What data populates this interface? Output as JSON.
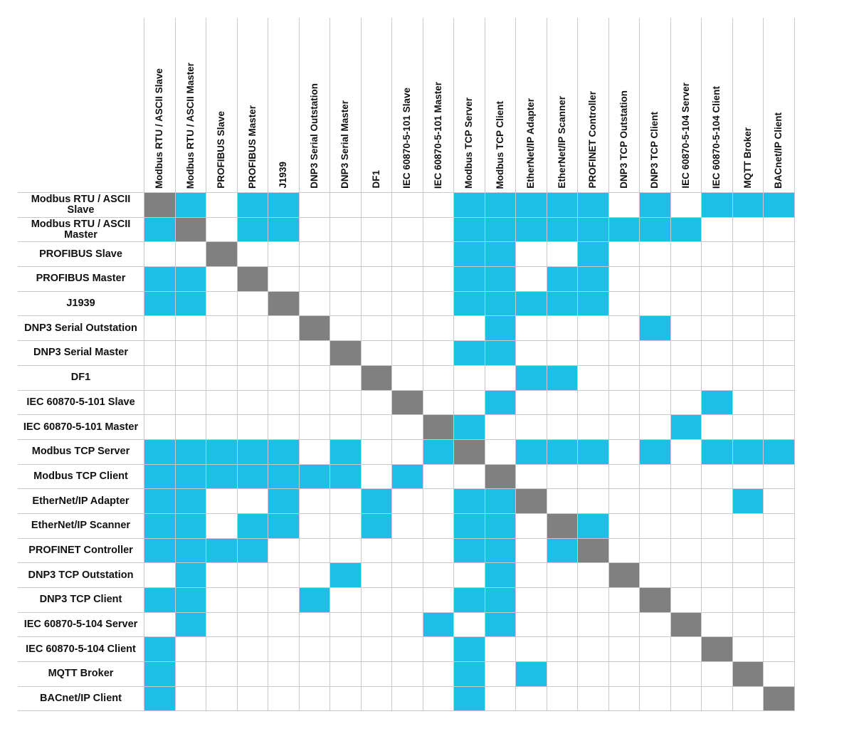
{
  "chart_data": {
    "type": "table",
    "protocols": [
      "Modbus RTU / ASCII Slave",
      "Modbus RTU / ASCII Master",
      "PROFIBUS Slave",
      "PROFIBUS Master",
      "J1939",
      "DNP3 Serial Outstation",
      "DNP3 Serial Master",
      "DF1",
      "IEC 60870-5-101 Slave",
      "IEC 60870-5-101 Master",
      "Modbus TCP Server",
      "Modbus TCP Client",
      "EtherNet/IP Adapter",
      "EtherNet/IP Scanner",
      "PROFINET Controller",
      "DNP3 TCP Outstation",
      "DNP3 TCP Client",
      "IEC 60870-5-104 Server",
      "IEC 60870-5-104 Client",
      "MQTT Broker",
      "BACnet/IP Client"
    ],
    "matrix": [
      [
        2,
        1,
        0,
        1,
        1,
        0,
        0,
        0,
        0,
        0,
        1,
        1,
        1,
        1,
        1,
        0,
        1,
        0,
        1,
        1,
        1
      ],
      [
        1,
        2,
        0,
        1,
        1,
        0,
        0,
        0,
        0,
        0,
        1,
        1,
        1,
        1,
        1,
        1,
        1,
        1,
        0,
        0,
        0
      ],
      [
        0,
        0,
        2,
        0,
        0,
        0,
        0,
        0,
        0,
        0,
        1,
        1,
        0,
        0,
        1,
        0,
        0,
        0,
        0,
        0,
        0
      ],
      [
        1,
        1,
        0,
        2,
        0,
        0,
        0,
        0,
        0,
        0,
        1,
        1,
        0,
        1,
        1,
        0,
        0,
        0,
        0,
        0,
        0
      ],
      [
        1,
        1,
        0,
        0,
        2,
        0,
        0,
        0,
        0,
        0,
        1,
        1,
        1,
        1,
        1,
        0,
        0,
        0,
        0,
        0,
        0
      ],
      [
        0,
        0,
        0,
        0,
        0,
        2,
        0,
        0,
        0,
        0,
        0,
        1,
        0,
        0,
        0,
        0,
        1,
        0,
        0,
        0,
        0
      ],
      [
        0,
        0,
        0,
        0,
        0,
        0,
        2,
        0,
        0,
        0,
        1,
        1,
        0,
        0,
        0,
        0,
        0,
        0,
        0,
        0,
        0
      ],
      [
        0,
        0,
        0,
        0,
        0,
        0,
        0,
        2,
        0,
        0,
        0,
        0,
        1,
        1,
        0,
        0,
        0,
        0,
        0,
        0,
        0
      ],
      [
        0,
        0,
        0,
        0,
        0,
        0,
        0,
        0,
        2,
        0,
        0,
        1,
        0,
        0,
        0,
        0,
        0,
        0,
        1,
        0,
        0
      ],
      [
        0,
        0,
        0,
        0,
        0,
        0,
        0,
        0,
        0,
        2,
        1,
        0,
        0,
        0,
        0,
        0,
        0,
        1,
        0,
        0,
        0
      ],
      [
        1,
        1,
        1,
        1,
        1,
        0,
        1,
        0,
        0,
        1,
        2,
        0,
        1,
        1,
        1,
        0,
        1,
        0,
        1,
        1,
        1
      ],
      [
        1,
        1,
        1,
        1,
        1,
        1,
        1,
        0,
        1,
        0,
        0,
        2,
        0,
        0,
        0,
        0,
        0,
        0,
        0,
        0,
        0
      ],
      [
        1,
        1,
        0,
        0,
        1,
        0,
        0,
        1,
        0,
        0,
        1,
        1,
        2,
        0,
        0,
        0,
        0,
        0,
        0,
        1,
        0
      ],
      [
        1,
        1,
        0,
        1,
        1,
        0,
        0,
        1,
        0,
        0,
        1,
        1,
        0,
        2,
        1,
        0,
        0,
        0,
        0,
        0,
        0
      ],
      [
        1,
        1,
        1,
        1,
        0,
        0,
        0,
        0,
        0,
        0,
        1,
        1,
        0,
        1,
        2,
        0,
        0,
        0,
        0,
        0,
        0
      ],
      [
        0,
        1,
        0,
        0,
        0,
        0,
        1,
        0,
        0,
        0,
        0,
        1,
        0,
        0,
        0,
        2,
        0,
        0,
        0,
        0,
        0
      ],
      [
        1,
        1,
        0,
        0,
        0,
        1,
        0,
        0,
        0,
        0,
        1,
        1,
        0,
        0,
        0,
        0,
        2,
        0,
        0,
        0,
        0
      ],
      [
        0,
        1,
        0,
        0,
        0,
        0,
        0,
        0,
        0,
        1,
        0,
        1,
        0,
        0,
        0,
        0,
        0,
        2,
        0,
        0,
        0
      ],
      [
        1,
        0,
        0,
        0,
        0,
        0,
        0,
        0,
        0,
        0,
        1,
        0,
        0,
        0,
        0,
        0,
        0,
        0,
        2,
        0,
        0
      ],
      [
        1,
        0,
        0,
        0,
        0,
        0,
        0,
        0,
        0,
        0,
        1,
        0,
        1,
        0,
        0,
        0,
        0,
        0,
        0,
        2,
        0
      ],
      [
        1,
        0,
        0,
        0,
        0,
        0,
        0,
        0,
        0,
        0,
        1,
        0,
        0,
        0,
        0,
        0,
        0,
        0,
        0,
        0,
        2
      ]
    ],
    "colors": {
      "supported": "#1ebfe6",
      "self": "#808080",
      "none": "#ffffff",
      "grid": "#c9c9c9"
    },
    "legend": "none",
    "grid": true
  }
}
